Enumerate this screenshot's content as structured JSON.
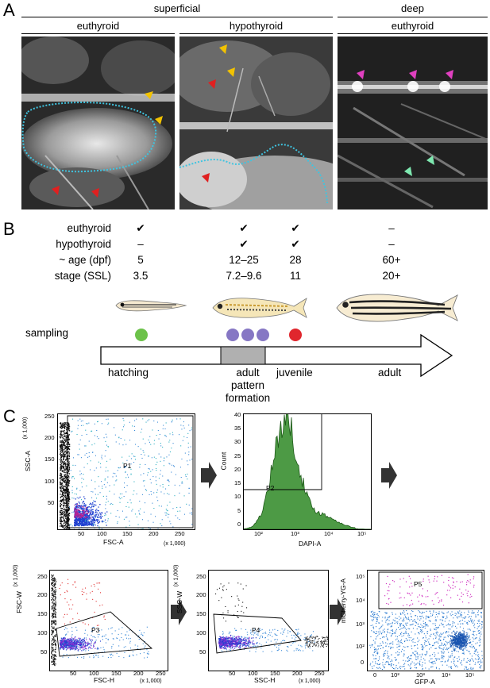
{
  "panelA": {
    "letter": "A",
    "group_superficial": "superficial",
    "group_deep": "deep",
    "sub_euthyroid_1": "euthyroid",
    "sub_hypothyroid": "hypothyroid",
    "sub_euthyroid_2": "euthyroid",
    "colors": {
      "yellow": "#f2c200",
      "red": "#e02020",
      "magenta": "#e040c0",
      "mint": "#7ee8b0",
      "cyan_dotted": "#3fc4e0"
    }
  },
  "panelB": {
    "letter": "B",
    "rows": [
      {
        "label": "euthyroid",
        "cells": [
          "✔",
          "✔",
          "✔",
          "–"
        ]
      },
      {
        "label": "hypothyroid",
        "cells": [
          "–",
          "✔",
          "✔",
          "–"
        ]
      },
      {
        "label": "~ age (dpf)",
        "cells": [
          "5",
          "12–25",
          "28",
          "60+"
        ]
      },
      {
        "label": "stage (SSL)",
        "cells": [
          "3.5",
          "7.2–9.6",
          "11",
          "20+"
        ]
      }
    ],
    "sampling_label": "sampling",
    "timeline_labels": {
      "hatching": "hatching",
      "adult_pattern_formation": "adult\npattern\nformation",
      "juvenile": "juvenile",
      "adult": "adult"
    },
    "dot_colors": {
      "green": "#6cc24a",
      "purple": "#8677c4",
      "red": "#e0262d"
    }
  },
  "panelC": {
    "letter": "C",
    "plots": {
      "p1": {
        "ylabel": "SSC-A",
        "yscale": "(x 1,000)",
        "xlabel": "FSC-A",
        "xscale": "(x 1,000)",
        "gate": "P1",
        "yticks": [
          "250",
          "200",
          "150",
          "100",
          "50"
        ],
        "xticks": [
          "50",
          "100",
          "150",
          "200",
          "250"
        ]
      },
      "p2": {
        "ylabel": "Count",
        "xlabel": "DAPI-A",
        "gate": "P2",
        "yticks": [
          "40",
          "35",
          "30",
          "25",
          "20",
          "15",
          "10",
          "5",
          "0"
        ],
        "xticks": [
          "10²",
          "10³",
          "10⁴",
          "10⁵"
        ]
      },
      "p3": {
        "ylabel": "FSC-W",
        "yscale": "(x 1,000)",
        "xlabel": "FSC-H",
        "xscale": "(x 1,000)",
        "gate": "P3",
        "yticks": [
          "250",
          "200",
          "150",
          "100",
          "50"
        ],
        "xticks": [
          "50",
          "100",
          "150",
          "200",
          "250"
        ]
      },
      "p4": {
        "ylabel": "SSC-W",
        "yscale": "(x 1,000)",
        "xlabel": "SSC-H",
        "xscale": "(x 1,000)",
        "gate": "P4",
        "yticks": [
          "250",
          "200",
          "150",
          "100",
          "50"
        ],
        "xticks": [
          "50",
          "100",
          "150",
          "200",
          "250"
        ]
      },
      "p5": {
        "ylabel": "mCherry-YG-A",
        "xlabel": "GFP-A",
        "gate": "P5",
        "yticks": [
          "10⁵",
          "10⁴",
          "10³",
          "10²",
          "0"
        ],
        "xticks": [
          "0",
          "10²",
          "10³",
          "10⁴",
          "10⁵"
        ]
      }
    }
  }
}
